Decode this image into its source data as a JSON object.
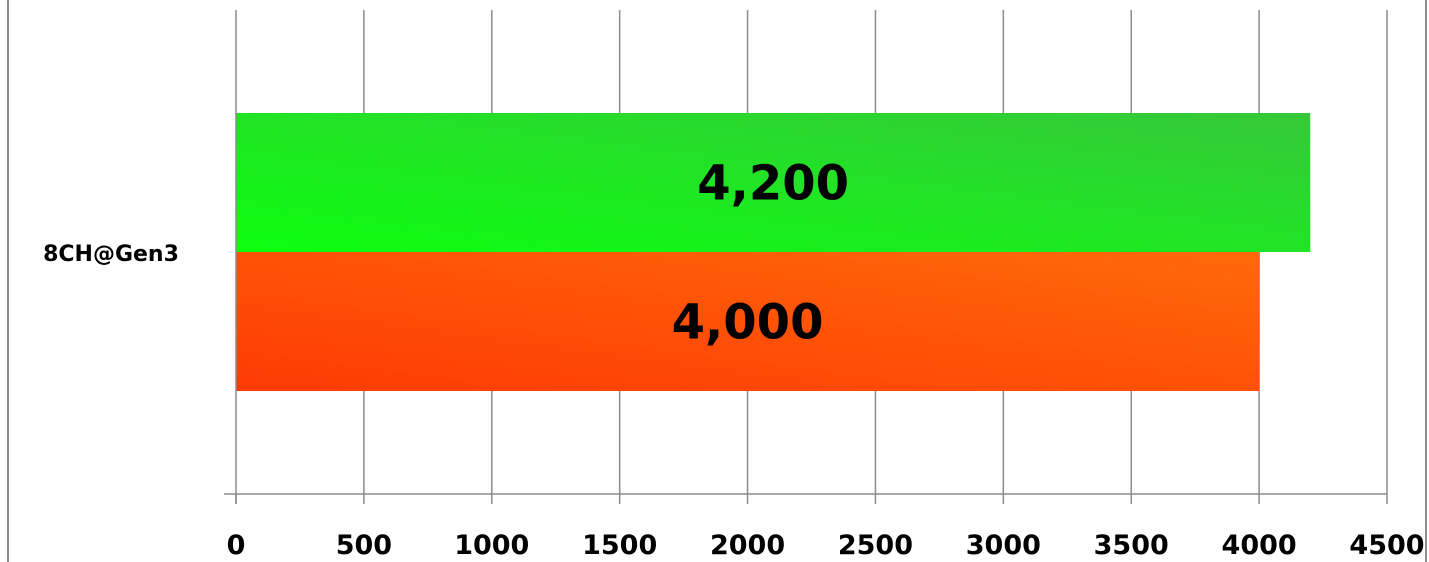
{
  "chart_data": {
    "type": "bar",
    "orientation": "horizontal",
    "categories": [
      "8CH@Gen3"
    ],
    "series": [
      {
        "values": [
          4200
        ],
        "data_labels": [
          "4,200"
        ],
        "color": "#22e82a"
      },
      {
        "values": [
          4000
        ],
        "data_labels": [
          "4,000"
        ],
        "color": "#ff5a10"
      }
    ],
    "xlim": [
      0,
      4500
    ],
    "x_ticks": [
      0,
      500,
      1000,
      1500,
      2000,
      2500,
      3000,
      3500,
      4000,
      4500
    ],
    "x_tick_labels": [
      "0",
      "500",
      "1000",
      "1500",
      "2000",
      "2500",
      "3000",
      "3500",
      "4000",
      "4500"
    ],
    "grid": true,
    "legend": "none"
  }
}
